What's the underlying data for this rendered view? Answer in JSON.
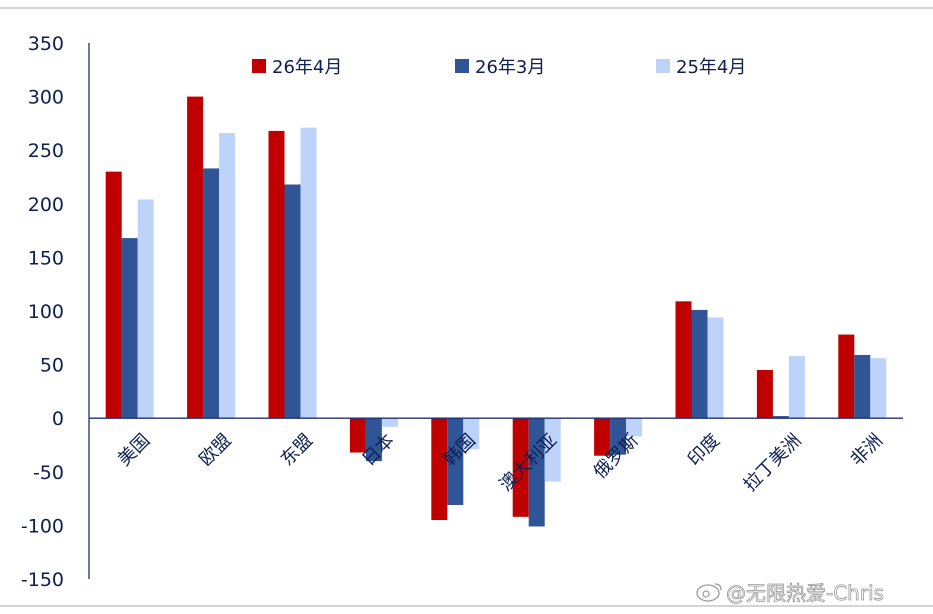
{
  "chart_data": {
    "type": "bar",
    "categories": [
      "美国",
      "欧盟",
      "东盟",
      "日本",
      "韩国",
      "澳大利亚",
      "俄罗斯",
      "印度",
      "拉丁美洲",
      "非洲"
    ],
    "series": [
      {
        "name": "26年4月",
        "color": "#c00000",
        "values": [
          230,
          300,
          268,
          -32,
          -95,
          -92,
          -35,
          109,
          45,
          78
        ]
      },
      {
        "name": "26年3月",
        "color": "#2f5597",
        "values": [
          168,
          233,
          218,
          -40,
          -81,
          -101,
          -34,
          101,
          2,
          59
        ]
      },
      {
        "name": "25年4月",
        "color": "#bdd3f9",
        "values": [
          204,
          266,
          271,
          -8,
          -29,
          -59,
          -17,
          94,
          58,
          56
        ]
      }
    ],
    "ylim": [
      -150,
      350
    ],
    "yticks": [
      350,
      300,
      250,
      200,
      150,
      100,
      50,
      0,
      -50,
      -100,
      -150
    ],
    "grid": false,
    "legend_position": "top"
  },
  "watermark": {
    "text": "@无限热爱-Chris",
    "icon": "weibo-icon"
  }
}
